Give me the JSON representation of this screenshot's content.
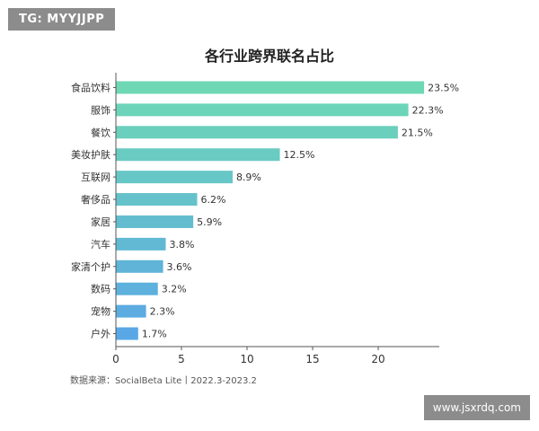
{
  "watermark_top": "TG: MYYJJPP",
  "watermark_bottom": "www.jsxrdq.com",
  "source_note": "数据来源：SocialBeta Lite丨2022.3-2023.2",
  "chart_data": {
    "type": "bar",
    "orientation": "horizontal",
    "title": "各行业跨界联名占比",
    "categories": [
      "食品饮料",
      "服饰",
      "餐饮",
      "美妆护肤",
      "互联网",
      "奢侈品",
      "家居",
      "汽车",
      "家清个护",
      "数码",
      "宠物",
      "户外"
    ],
    "values": [
      23.5,
      22.3,
      21.5,
      12.5,
      8.9,
      6.2,
      5.9,
      3.8,
      3.6,
      3.2,
      2.3,
      1.7
    ],
    "value_labels": [
      "23.5%",
      "22.3%",
      "21.5%",
      "12.5%",
      "8.9%",
      "6.2%",
      "5.9%",
      "3.8%",
      "3.6%",
      "3.2%",
      "2.3%",
      "1.7%"
    ],
    "xlim": [
      0,
      25
    ],
    "xticks": [
      0,
      5,
      10,
      15,
      20
    ],
    "xtick_labels": [
      "0",
      "5",
      "10",
      "15",
      "20"
    ],
    "grid": false,
    "colors": {
      "bar_top": "#6ed8b4",
      "bar_bottom": "#5aa7e6",
      "axis": "#555555",
      "text": "#333333"
    }
  }
}
